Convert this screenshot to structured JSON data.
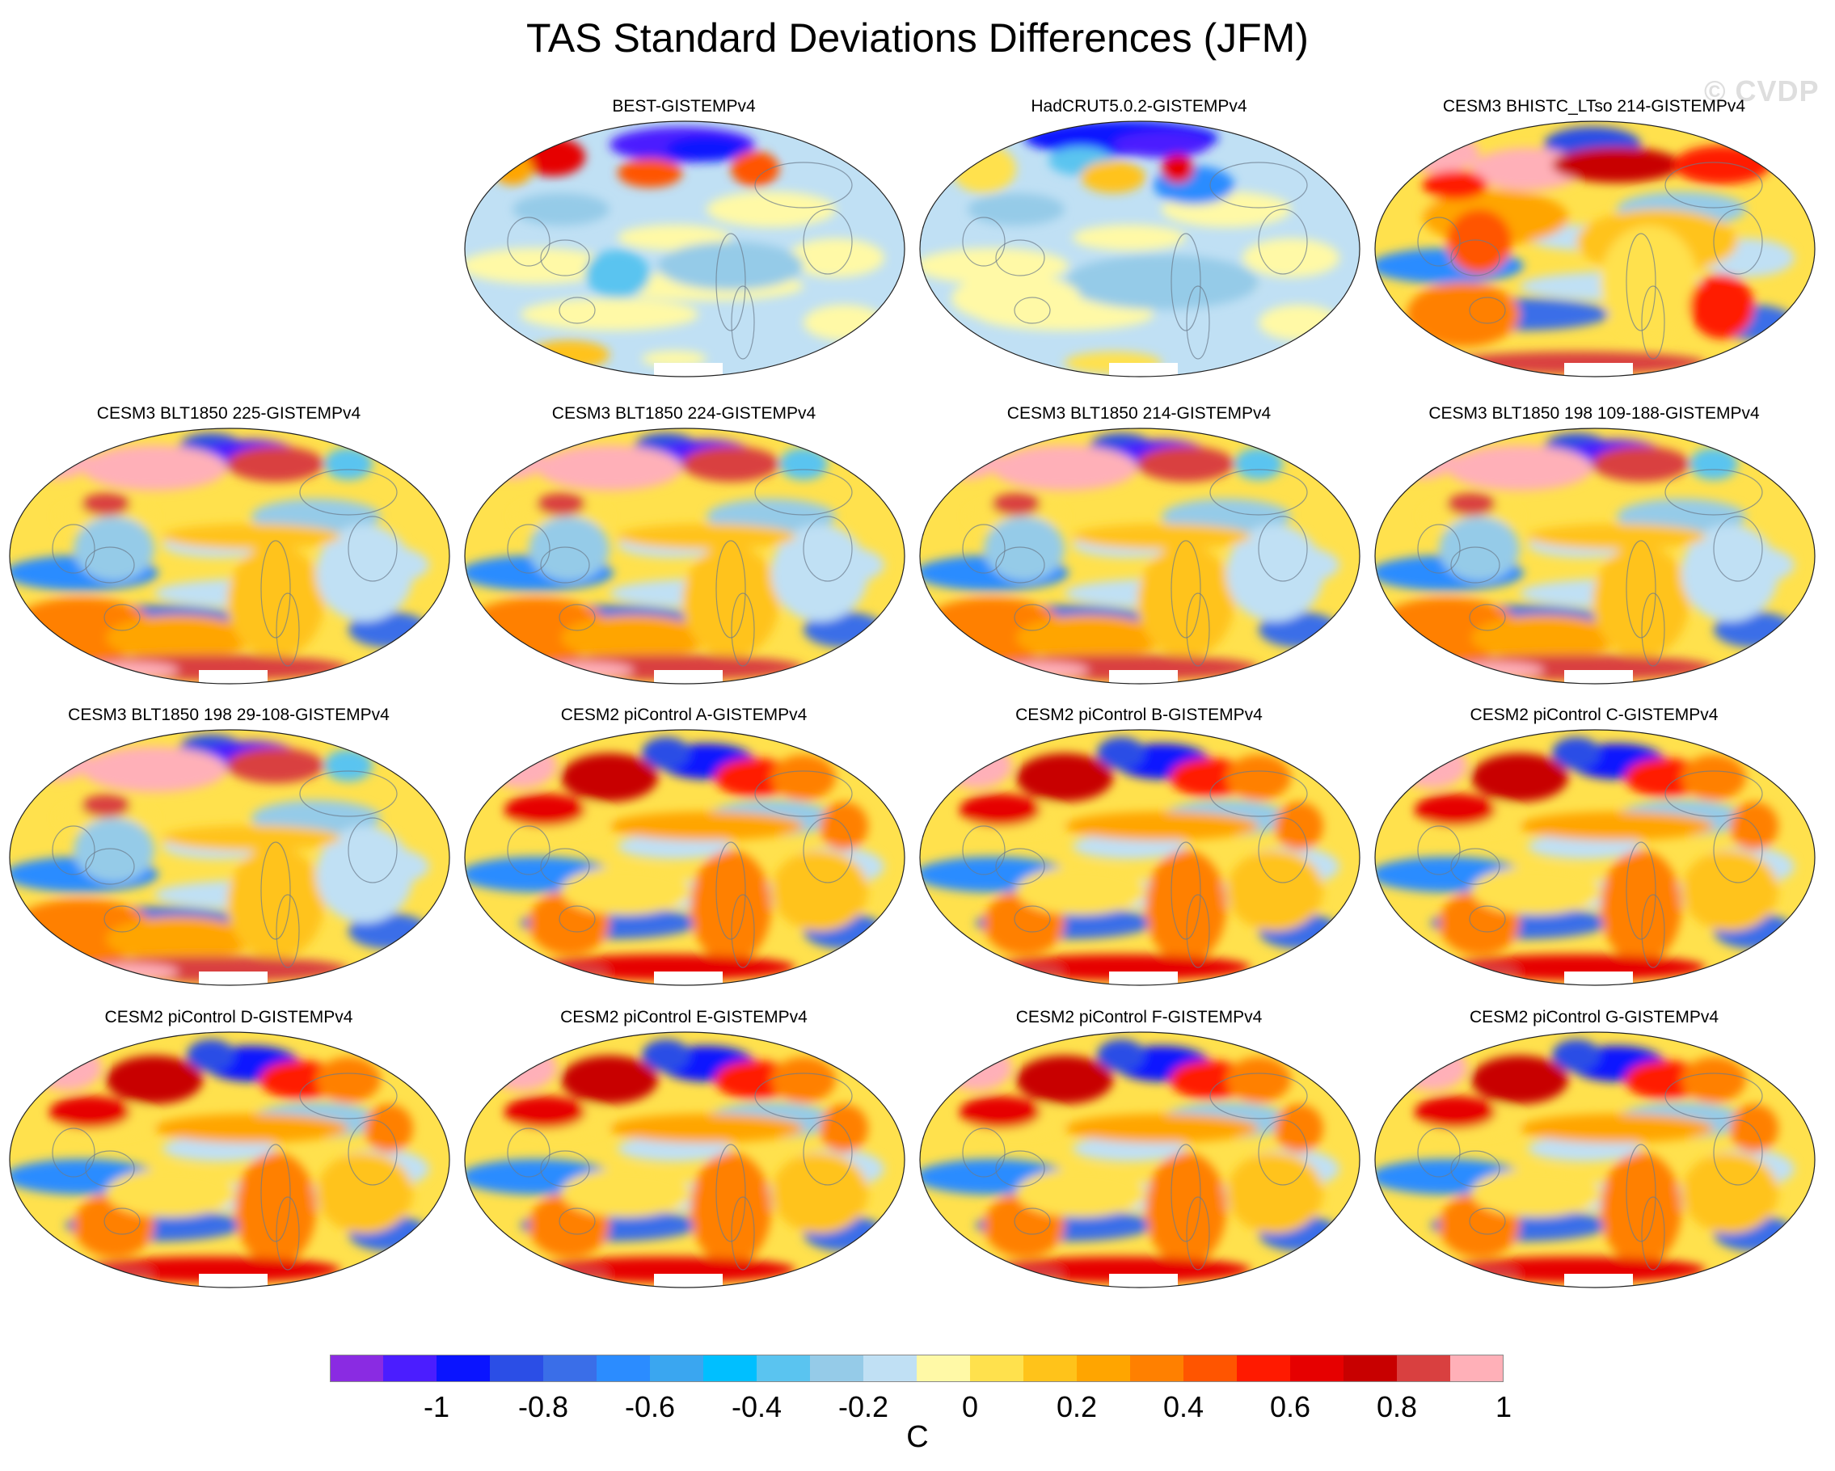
{
  "title": "TAS Standard Deviations Differences (JFM)",
  "watermark": "© CVDP",
  "panels": [
    {
      "title": "BEST-GISTEMPv4",
      "style": "obsA"
    },
    {
      "title": "HadCRUT5.0.2-GISTEMPv4",
      "style": "obsB"
    },
    {
      "title": "CESM3 BHISTC_LTso 214-GISTEMPv4",
      "style": "hist"
    },
    {
      "title": "CESM3 BLT1850 225-GISTEMPv4",
      "style": "blt"
    },
    {
      "title": "CESM3 BLT1850 224-GISTEMPv4",
      "style": "blt"
    },
    {
      "title": "CESM3 BLT1850 214-GISTEMPv4",
      "style": "blt"
    },
    {
      "title": "CESM3 BLT1850 198 109-188-GISTEMPv4",
      "style": "blt"
    },
    {
      "title": "CESM3 BLT1850 198 29-108-GISTEMPv4",
      "style": "blt"
    },
    {
      "title": "CESM2 piControl A-GISTEMPv4",
      "style": "pi"
    },
    {
      "title": "CESM2 piControl B-GISTEMPv4",
      "style": "pi"
    },
    {
      "title": "CESM2 piControl C-GISTEMPv4",
      "style": "pi"
    },
    {
      "title": "CESM2 piControl D-GISTEMPv4",
      "style": "pi"
    },
    {
      "title": "CESM2 piControl E-GISTEMPv4",
      "style": "pi"
    },
    {
      "title": "CESM2 piControl F-GISTEMPv4",
      "style": "pi"
    },
    {
      "title": "CESM2 piControl G-GISTEMPv4",
      "style": "pi"
    }
  ],
  "colorbar": {
    "unit": "C",
    "colors": [
      "#8a2be2",
      "#4b1dff",
      "#0a14ff",
      "#2b4ee6",
      "#3a6ee8",
      "#2b8cff",
      "#3aa6f0",
      "#00bfff",
      "#5ac4f0",
      "#95cbe8",
      "#c0e0f4",
      "#fff9a6",
      "#ffe14d",
      "#ffc31a",
      "#ffa500",
      "#ff8000",
      "#ff5500",
      "#ff1a00",
      "#e60000",
      "#c80000",
      "#d94040",
      "#ffb0b8"
    ],
    "tick_labels": [
      "-1",
      "-0.8",
      "-0.6",
      "-0.4",
      "-0.2",
      "0",
      "0.2",
      "0.4",
      "0.6",
      "0.8",
      "1"
    ]
  }
}
